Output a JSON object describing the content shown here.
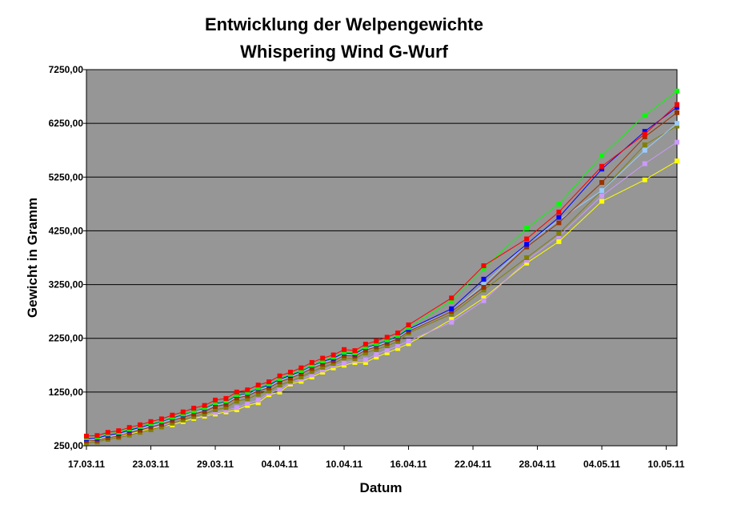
{
  "chart_data": {
    "type": "line",
    "title": [
      "Entwicklung der Welpengewichte",
      "Whispering Wind G-Wurf"
    ],
    "x_label": "Datum",
    "y_label": "Gewicht in Gramm",
    "x": [
      "17.03.11",
      "18.03.11",
      "19.03.11",
      "20.03.11",
      "21.03.11",
      "22.03.11",
      "23.03.11",
      "24.03.11",
      "25.03.11",
      "26.03.11",
      "27.03.11",
      "28.03.11",
      "29.03.11",
      "30.03.11",
      "31.03.11",
      "01.04.11",
      "02.04.11",
      "03.04.11",
      "04.04.11",
      "05.04.11",
      "06.04.11",
      "07.04.11",
      "08.04.11",
      "09.04.11",
      "10.04.11",
      "11.04.11",
      "12.04.11",
      "13.04.11",
      "14.04.11",
      "15.04.11",
      "16.04.11",
      "20.04.11",
      "23.04.11",
      "27.04.11",
      "30.04.11",
      "04.05.11",
      "08.05.11",
      "11.05.11"
    ],
    "xlim": [
      "17.03.11",
      "11.05.11"
    ],
    "xticks": [
      "17.03.11",
      "23.03.11",
      "29.03.11",
      "04.04.11",
      "10.04.11",
      "16.04.11",
      "22.04.11",
      "28.04.11",
      "04.05.11",
      "10.05.11"
    ],
    "ylim": [
      250,
      7250
    ],
    "yticks": [
      {
        "value": 250,
        "label": "250,00"
      },
      {
        "value": 1250,
        "label": "1250,00"
      },
      {
        "value": 2250,
        "label": "2250,00"
      },
      {
        "value": 3250,
        "label": "3250,00"
      },
      {
        "value": 4250,
        "label": "4250,00"
      },
      {
        "value": 5250,
        "label": "5250,00"
      },
      {
        "value": 6250,
        "label": "6250,00"
      },
      {
        "value": 7250,
        "label": "7250,00"
      }
    ],
    "grid": true,
    "series": [
      {
        "color": "#ffff00",
        "values": [
          330,
          360,
          400,
          430,
          470,
          510,
          560,
          610,
          640,
          700,
          760,
          800,
          840,
          880,
          920,
          1000,
          1050,
          1200,
          1250,
          1400,
          1450,
          1530,
          1620,
          1700,
          1750,
          1800,
          1800,
          1900,
          1980,
          2060,
          2150,
          2600,
          3000,
          3650,
          4050,
          4800,
          5200,
          5550
        ]
      },
      {
        "color": "#cc99ff",
        "values": [
          350,
          380,
          420,
          450,
          490,
          530,
          580,
          630,
          670,
          730,
          790,
          830,
          870,
          910,
          960,
          1040,
          1100,
          1230,
          1290,
          1430,
          1490,
          1570,
          1660,
          1740,
          1790,
          1840,
          1850,
          1950,
          2030,
          2110,
          2200,
          2550,
          2950,
          3700,
          4150,
          4900,
          5500,
          5900
        ]
      },
      {
        "color": "#808000",
        "values": [
          300,
          320,
          370,
          400,
          450,
          500,
          550,
          600,
          670,
          730,
          790,
          840,
          920,
          960,
          1080,
          1120,
          1210,
          1270,
          1380,
          1450,
          1530,
          1630,
          1710,
          1780,
          1880,
          1870,
          1980,
          2040,
          2110,
          2190,
          2350,
          2700,
          3150,
          3750,
          4200,
          5000,
          5850,
          6200
        ]
      },
      {
        "color": "#99ccff",
        "values": [
          360,
          370,
          420,
          450,
          520,
          570,
          620,
          680,
          740,
          800,
          870,
          920,
          1010,
          1040,
          1160,
          1200,
          1290,
          1350,
          1460,
          1530,
          1610,
          1710,
          1790,
          1850,
          1950,
          1940,
          2050,
          2110,
          2180,
          2260,
          2400,
          2750,
          3250,
          4000,
          4450,
          5000,
          5750,
          6250
        ]
      },
      {
        "color": "#993300",
        "values": [
          340,
          350,
          400,
          430,
          490,
          540,
          600,
          650,
          720,
          780,
          840,
          890,
          980,
          1020,
          1140,
          1180,
          1270,
          1330,
          1440,
          1510,
          1590,
          1690,
          1770,
          1830,
          1930,
          1920,
          2030,
          2090,
          2160,
          2240,
          2380,
          2750,
          3200,
          3950,
          4400,
          5150,
          6000,
          6450
        ]
      },
      {
        "color": "#0000ff",
        "values": [
          380,
          390,
          450,
          480,
          540,
          590,
          650,
          700,
          770,
          830,
          900,
          950,
          1040,
          1070,
          1190,
          1230,
          1320,
          1380,
          1490,
          1560,
          1640,
          1740,
          1820,
          1880,
          1980,
          1960,
          2080,
          2140,
          2210,
          2290,
          2420,
          2800,
          3350,
          4000,
          4500,
          5400,
          6100,
          6550
        ]
      },
      {
        "color": "#00ff00",
        "values": [
          400,
          410,
          470,
          500,
          560,
          610,
          660,
          710,
          780,
          840,
          900,
          960,
          1050,
          1080,
          1200,
          1240,
          1330,
          1400,
          1500,
          1580,
          1650,
          1750,
          1830,
          1900,
          1990,
          1980,
          2090,
          2150,
          2220,
          2300,
          2450,
          2950,
          3550,
          4300,
          4750,
          5650,
          6400,
          6850
        ]
      },
      {
        "color": "#ff0000",
        "values": [
          430,
          440,
          500,
          530,
          590,
          640,
          700,
          750,
          820,
          880,
          950,
          1000,
          1100,
          1130,
          1250,
          1290,
          1380,
          1440,
          1550,
          1620,
          1700,
          1800,
          1880,
          1940,
          2040,
          2020,
          2140,
          2200,
          2270,
          2350,
          2500,
          3000,
          3600,
          4100,
          4600,
          5450,
          6050,
          6600
        ]
      }
    ]
  }
}
